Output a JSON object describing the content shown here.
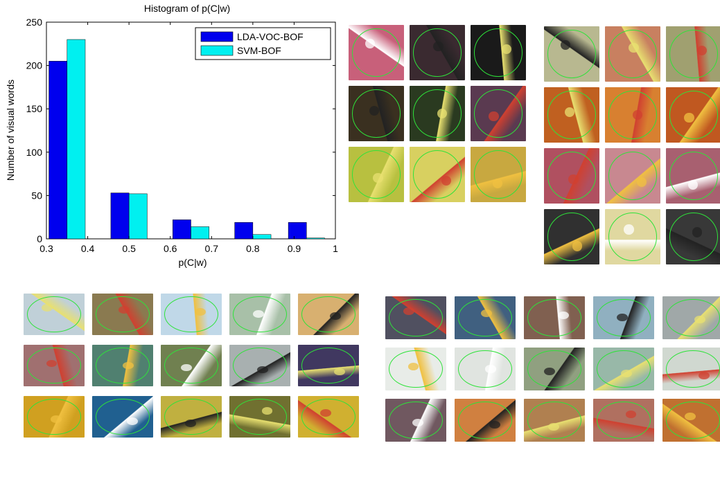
{
  "chart_data": {
    "type": "bar",
    "title": "Histogram of p(C|w)",
    "xlabel": "p(C|w)",
    "ylabel": "Number of visual words",
    "xlim": [
      0.3,
      1.0
    ],
    "ylim": [
      0,
      250
    ],
    "x_ticks": [
      "0.3",
      "0.4",
      "0.5",
      "0.6",
      "0.7",
      "0.8",
      "0.9",
      "1"
    ],
    "y_ticks": [
      "0",
      "50",
      "100",
      "150",
      "200",
      "250"
    ],
    "bin_centers": [
      0.35,
      0.5,
      0.65,
      0.8,
      0.93
    ],
    "bar_width": 0.044,
    "series": [
      {
        "name": "LDA-VOC-BOF",
        "color": "#0000ee",
        "values": [
          205,
          53,
          22,
          19,
          19
        ]
      },
      {
        "name": "SVM-BOF",
        "color": "#00f0f0",
        "values": [
          230,
          52,
          14,
          5,
          1
        ]
      }
    ],
    "legend": "top-right",
    "grid": false
  },
  "patch_groups": [
    {
      "id": "butterfly-a",
      "rows": [
        [
          "#c8607a",
          "#3a2a30",
          "#1a1a1a"
        ],
        [
          "#3a3020",
          "#2a3a20",
          "#5a3a50"
        ],
        [
          "#b8c040",
          "#d8d060",
          "#c8a840"
        ]
      ]
    },
    {
      "id": "butterfly-b",
      "rows": [
        [
          "#b8b890",
          "#c88060",
          "#a0a070"
        ],
        [
          "#c06020",
          "#d88030",
          "#c05820"
        ],
        [
          "#b05060",
          "#c88890",
          "#a86070"
        ],
        [
          "#303030",
          "#e0d8a0",
          "#383838"
        ]
      ]
    },
    {
      "id": "birds-a",
      "rows": [
        [
          "#c0d0d8",
          "#8a7a50",
          "#c0d8e8",
          "#a8c0a8",
          "#d8b070"
        ],
        [
          "#a07070",
          "#508070",
          "#708050",
          "#a8b0b0",
          "#403860"
        ],
        [
          "#d0a020",
          "#206090",
          "#c0b040",
          "#707030",
          "#d0b030"
        ]
      ]
    },
    {
      "id": "birds-b",
      "rows": [
        [
          "#505060",
          "#406080",
          "#806050",
          "#90b0c0",
          "#a0a8a8"
        ],
        [
          "#e8ece8",
          "#e0e4e0",
          "#90a080",
          "#98b8a8",
          "#d0d8d0"
        ],
        [
          "#705860",
          "#d08040",
          "#b08050",
          "#b07060",
          "#c07030"
        ]
      ]
    }
  ]
}
